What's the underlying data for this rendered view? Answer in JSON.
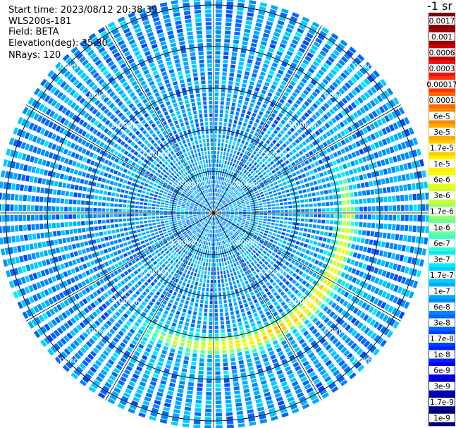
{
  "header": {
    "start_time": "Start time: 2023/08/12 20:38:39",
    "instrument": "WLS200s-181",
    "field": "Field: BETA",
    "elevation": "Elevation(deg): 35.30",
    "nrays": "NRays: 120"
  },
  "colorbar": {
    "units_label": "-1 sr",
    "labels": [
      "0.0017",
      "0.001",
      "0.0006",
      "0.0003",
      "0.00017",
      "0.0001",
      "6e-5",
      "3e-5",
      "1.7e-5",
      "1e-5",
      "6e-6",
      "3e-6",
      "1.7e-6",
      "1e-6",
      "6e-7",
      "3e-7",
      "1.7e-7",
      "1e-7",
      "6e-8",
      "3e-8",
      "1.7e-8",
      "1e-8",
      "6e-9",
      "3e-9",
      "1.7e-9",
      "1e-9"
    ],
    "colors": [
      "#7f0000",
      "#a00000",
      "#c80000",
      "#f01010",
      "#ff3300",
      "#ff6600",
      "#ff8800",
      "#ffaa00",
      "#ffcc00",
      "#ffee00",
      "#eeff10",
      "#ccff33",
      "#99ff66",
      "#66ff99",
      "#33ffcc",
      "#00eeff",
      "#00ccff",
      "#00aaff",
      "#0088ff",
      "#0066ff",
      "#0044ff",
      "#0022ff",
      "#0000ee",
      "#0000c0",
      "#000099",
      "#00006e"
    ]
  },
  "chart_data": {
    "type": "heatmap",
    "projection": "polar (PPI scan)",
    "field": "BETA",
    "nrays": 120,
    "elevation_deg": 35.3,
    "range_rings_km": [
      1,
      2,
      3,
      4,
      5
    ],
    "ring_labels": [
      "1.00km",
      "2.00km",
      "3.00km",
      "4.00km",
      "5.00km"
    ],
    "max_range_km": 5.2,
    "radial_spokes_deg": [
      0,
      30,
      60,
      90,
      120,
      150,
      180,
      210,
      240,
      270,
      300,
      330
    ],
    "color_scale": "log",
    "value_range": [
      1e-09,
      0.0017
    ],
    "background_level": 7e-08,
    "enhanced_band": {
      "radius_km": 3.2,
      "value_at_peak": 1.5e-05,
      "note": "arc of elevated backscatter visible from the east through south-southwest"
    }
  }
}
